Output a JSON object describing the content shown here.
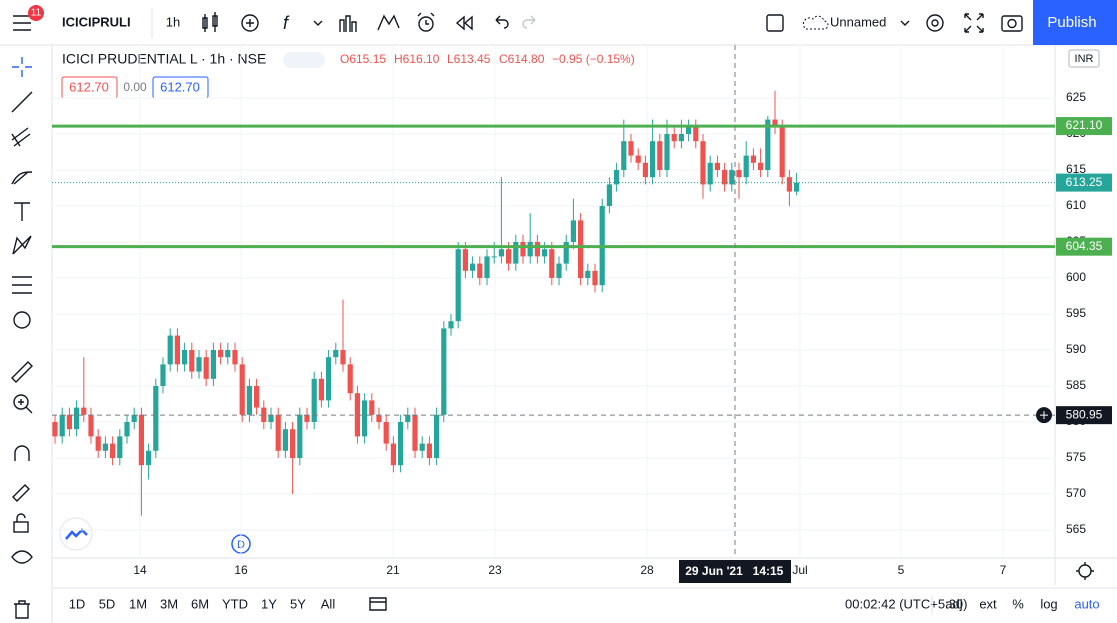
{
  "toolbar": {
    "symbol": "ICICIPRULI",
    "interval": "1h",
    "layout_name": "Unnamed",
    "publish": "Publish",
    "alerts_badge": "11"
  },
  "legend": {
    "title": "ICICI PRUDENTIAL L · 1h · NSE",
    "open": "O615.15",
    "high": "H616.10",
    "low": "L613.45",
    "close": "C614.80",
    "change": "−0.95 (−0.15%)",
    "bid": "612.70",
    "spread": "0.00",
    "ask": "612.70"
  },
  "chart_data": {
    "type": "candlestick",
    "currency": "INR",
    "ylim": [
      561.11,
      632.36
    ],
    "yticks": [
      565,
      570,
      575,
      580,
      585,
      590,
      595,
      600,
      605,
      610,
      615,
      620,
      625
    ],
    "up_color": "#26a69a",
    "down_color": "#ef5350",
    "candles": [
      [
        580,
        581,
        577,
        578
      ],
      [
        578,
        582,
        577,
        581
      ],
      [
        581,
        582,
        578,
        579
      ],
      [
        579,
        583,
        578,
        582
      ],
      [
        582,
        589,
        580,
        581
      ],
      [
        581,
        582,
        577,
        578
      ],
      [
        578,
        579,
        575,
        576
      ],
      [
        576,
        578,
        575,
        577
      ],
      [
        577,
        578,
        574,
        575
      ],
      [
        575,
        579,
        574,
        578
      ],
      [
        578,
        581,
        577,
        580
      ],
      [
        580,
        582,
        579,
        581
      ],
      [
        581,
        582,
        567,
        574
      ],
      [
        574,
        577,
        572,
        576
      ],
      [
        576,
        586,
        575,
        585
      ],
      [
        585,
        589,
        584,
        588
      ],
      [
        588,
        593,
        587,
        592
      ],
      [
        592,
        593,
        587,
        588
      ],
      [
        588,
        591,
        587,
        590
      ],
      [
        590,
        591,
        586,
        587
      ],
      [
        587,
        590,
        586,
        589
      ],
      [
        589,
        590,
        585,
        586
      ],
      [
        586,
        591,
        585,
        590
      ],
      [
        590,
        591,
        588,
        589
      ],
      [
        589,
        591,
        588,
        590
      ],
      [
        590,
        591,
        587,
        588
      ],
      [
        588,
        589,
        580,
        581
      ],
      [
        581,
        586,
        580,
        585
      ],
      [
        585,
        586,
        581,
        582
      ],
      [
        582,
        583,
        579,
        580
      ],
      [
        580,
        582,
        579,
        581
      ],
      [
        581,
        582,
        575,
        576
      ],
      [
        576,
        580,
        575,
        579
      ],
      [
        579,
        580,
        570,
        575
      ],
      [
        575,
        582,
        574,
        581
      ],
      [
        581,
        582,
        579,
        580
      ],
      [
        580,
        587,
        579,
        586
      ],
      [
        586,
        587,
        582,
        583
      ],
      [
        583,
        590,
        582,
        589
      ],
      [
        589,
        591,
        588,
        590
      ],
      [
        590,
        597,
        587,
        588
      ],
      [
        588,
        589,
        583,
        584
      ],
      [
        584,
        585,
        577,
        578
      ],
      [
        578,
        584,
        577,
        583
      ],
      [
        583,
        584,
        580,
        581
      ],
      [
        581,
        582,
        579,
        580
      ],
      [
        580,
        581,
        576,
        577
      ],
      [
        577,
        578,
        573,
        574
      ],
      [
        574,
        581,
        573,
        580
      ],
      [
        580,
        582,
        579,
        581
      ],
      [
        581,
        582,
        575,
        576
      ],
      [
        576,
        578,
        575,
        577
      ],
      [
        577,
        578,
        574,
        575
      ],
      [
        575,
        582,
        574,
        581
      ],
      [
        581,
        594,
        580,
        593
      ],
      [
        593,
        595,
        592,
        594
      ],
      [
        594,
        605,
        593,
        604
      ],
      [
        604,
        605,
        600,
        601
      ],
      [
        601,
        603,
        600,
        602
      ],
      [
        602,
        603,
        599,
        600
      ],
      [
        600,
        604,
        599,
        603
      ],
      [
        603,
        605,
        602,
        603
      ],
      [
        603,
        614,
        602,
        604
      ],
      [
        604,
        605,
        601,
        602
      ],
      [
        602,
        606,
        601,
        605
      ],
      [
        605,
        606,
        602,
        603
      ],
      [
        603,
        609,
        602,
        605
      ],
      [
        605,
        606,
        602,
        603
      ],
      [
        603,
        605,
        602,
        604
      ],
      [
        604,
        605,
        599,
        600
      ],
      [
        600,
        603,
        599,
        602
      ],
      [
        602,
        606,
        601,
        605
      ],
      [
        605,
        611,
        604,
        608
      ],
      [
        608,
        609,
        599,
        600
      ],
      [
        600,
        602,
        599,
        601
      ],
      [
        601,
        602,
        598,
        599
      ],
      [
        599,
        611,
        598,
        610
      ],
      [
        610,
        614,
        609,
        613
      ],
      [
        613,
        616,
        612,
        615
      ],
      [
        615,
        622,
        614,
        619
      ],
      [
        619,
        620,
        616,
        617
      ],
      [
        617,
        618,
        615,
        616
      ],
      [
        616,
        617,
        613,
        614
      ],
      [
        614,
        622,
        613,
        619
      ],
      [
        619,
        620,
        614,
        615
      ],
      [
        615,
        622,
        614,
        620
      ],
      [
        620,
        621,
        618,
        619
      ],
      [
        619,
        622,
        618,
        620
      ],
      [
        620,
        622,
        619,
        621
      ],
      [
        621,
        622,
        618,
        619
      ],
      [
        619,
        620,
        611,
        613
      ],
      [
        613,
        617,
        612,
        616
      ],
      [
        616,
        617,
        614,
        615
      ],
      [
        615,
        616,
        612,
        613
      ],
      [
        613,
        616,
        612,
        615
      ],
      [
        615,
        616,
        611,
        614
      ],
      [
        614,
        619,
        613,
        617
      ],
      [
        617,
        618,
        615,
        616
      ],
      [
        616,
        618,
        614,
        615
      ],
      [
        615,
        622.5,
        614,
        622
      ],
      [
        622,
        626,
        620,
        621
      ],
      [
        621,
        622,
        613,
        614
      ],
      [
        614,
        615,
        610,
        612
      ],
      [
        612,
        614.6,
        611.5,
        613.25
      ]
    ],
    "lines": [
      {
        "value": 621.1,
        "label": "621.10",
        "color": "#4caf50"
      },
      {
        "value": 604.35,
        "label": "604.35",
        "color": "#4caf50"
      }
    ],
    "last_price": {
      "value": 613.25,
      "label": "613.25",
      "color": "#26a69a"
    },
    "crosshair": {
      "value": 580.95,
      "label": "580.95",
      "time": "29 Jun '21",
      "clock": "14:15"
    },
    "x_labels": [
      "14",
      "16",
      "21",
      "23",
      "28",
      "Jul",
      "5",
      "7"
    ],
    "dividend_marker": "D"
  },
  "bottom": {
    "ranges": [
      "1D",
      "5D",
      "1M",
      "3M",
      "6M",
      "YTD",
      "1Y",
      "5Y",
      "All"
    ],
    "clock": "00:02:42 (UTC+5:30)",
    "options": [
      "adj",
      "ext",
      "%",
      "log",
      "auto"
    ]
  }
}
